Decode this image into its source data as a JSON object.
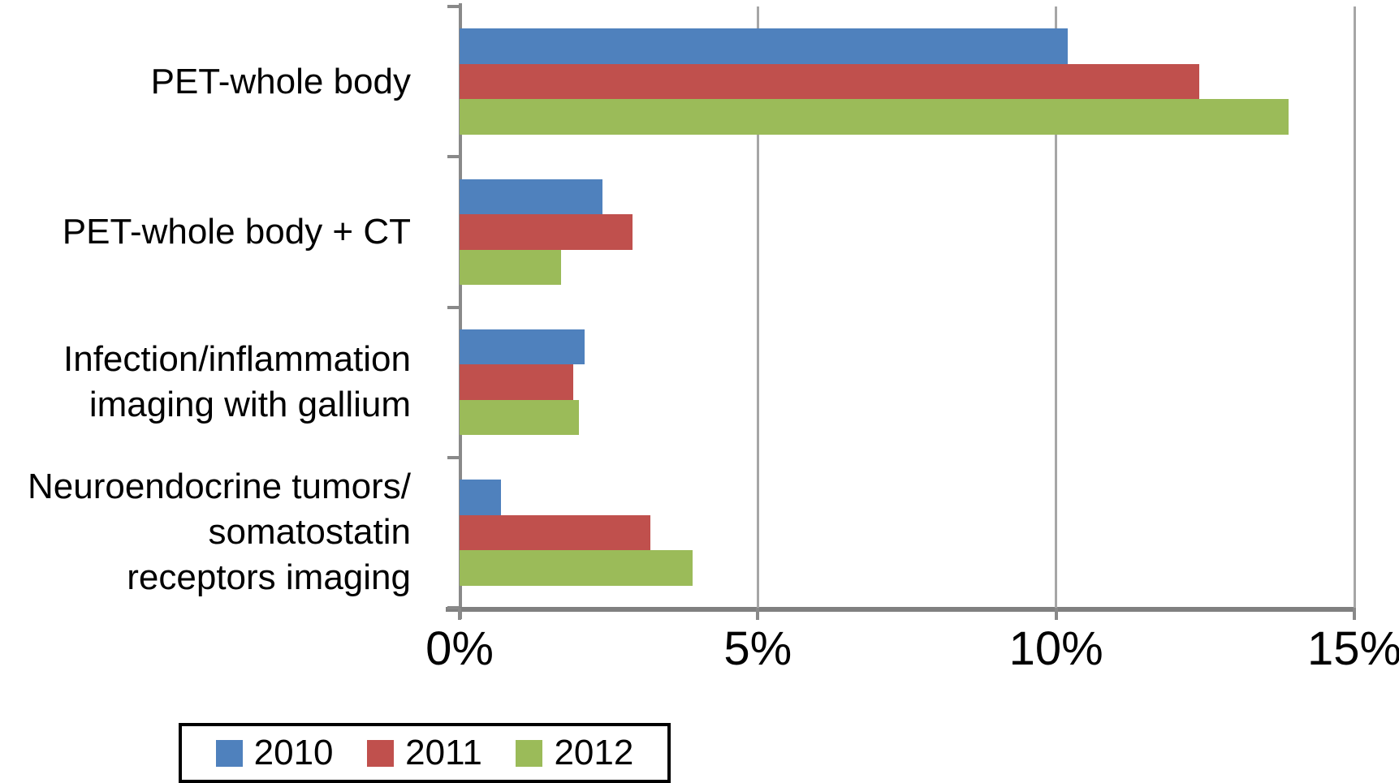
{
  "chart_data": {
    "type": "bar",
    "orientation": "horizontal",
    "title": "",
    "xlabel": "",
    "ylabel": "",
    "xlim": [
      0,
      15
    ],
    "xtick_values": [
      0,
      5,
      10,
      15
    ],
    "xtick_labels": [
      "0%",
      "5%",
      "10%",
      "15%"
    ],
    "grid": true,
    "categories": [
      "PET-whole body",
      "PET-whole body + CT",
      "Infection/inflammation imaging with gallium",
      "Neuroendocrine tumors/ somatostatin receptors imaging"
    ],
    "category_lines": [
      [
        "PET-whole body"
      ],
      [
        "PET-whole body + CT"
      ],
      [
        "Infection/inflammation",
        "imaging with gallium"
      ],
      [
        "Neuroendocrine tumors/",
        "somatostatin",
        "receptors imaging"
      ]
    ],
    "series": [
      {
        "name": "2010",
        "color": "#4F81BD",
        "values": [
          10.2,
          2.4,
          2.1,
          0.7
        ]
      },
      {
        "name": "2011",
        "color": "#C0504D",
        "values": [
          12.4,
          2.9,
          1.9,
          3.2
        ]
      },
      {
        "name": "2012",
        "color": "#9BBB59",
        "values": [
          13.9,
          1.7,
          2.0,
          3.9
        ]
      }
    ],
    "legend_position": "bottom",
    "axis_color": "#898989",
    "gridline_color": "#A6A6A6"
  }
}
